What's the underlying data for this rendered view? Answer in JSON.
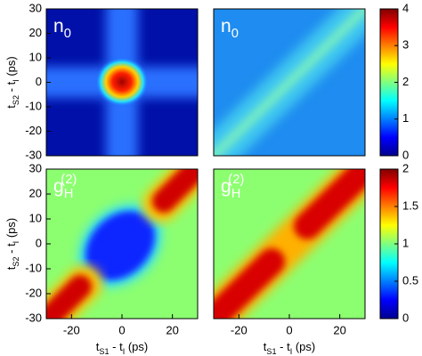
{
  "chart_data": [
    {
      "type": "heatmap",
      "label": [
        "n",
        "0"
      ],
      "ylim": [
        -30,
        30
      ],
      "yticks": [
        -30,
        -20,
        -10,
        0,
        10,
        20,
        30
      ],
      "ylabel": [
        "t",
        "S2",
        " - t",
        "I",
        " (ps)"
      ]
    },
    {
      "type": "heatmap",
      "label": [
        "n",
        "0"
      ],
      "colorbar": {
        "lim": [
          0,
          4
        ],
        "ticks": [
          0,
          1,
          2,
          3,
          4
        ],
        "colormap": [
          "#00008f",
          "#0000ff",
          "#00ffff",
          "#ffff00",
          "#ff0000",
          "#800000"
        ]
      }
    },
    {
      "type": "heatmap",
      "label": [
        "g",
        "H",
        "(2)"
      ],
      "xlim": [
        -30,
        30
      ],
      "xticks": [
        -20,
        0,
        20
      ],
      "ylim": [
        -30,
        30
      ],
      "yticks": [
        -30,
        -20,
        -10,
        0,
        10,
        20,
        30
      ],
      "xlabel": [
        "t",
        "S1",
        " - t",
        "I",
        " (ps)"
      ],
      "ylabel": [
        "t",
        "S2",
        " - t",
        "I",
        " (ps)"
      ]
    },
    {
      "type": "heatmap",
      "label": [
        "g",
        "H",
        "(2)"
      ],
      "xlim": [
        -30,
        30
      ],
      "xticks": [
        -20,
        0,
        20
      ],
      "xlabel": [
        "t",
        "S1",
        " - t",
        "I",
        " (ps)"
      ],
      "colorbar": {
        "lim": [
          0,
          2
        ],
        "ticks": [
          0,
          0.5,
          1,
          1.5,
          2
        ],
        "colormap": [
          "#00008f",
          "#0000ff",
          "#00ffff",
          "#ffff00",
          "#ff0000",
          "#800000"
        ]
      }
    }
  ]
}
